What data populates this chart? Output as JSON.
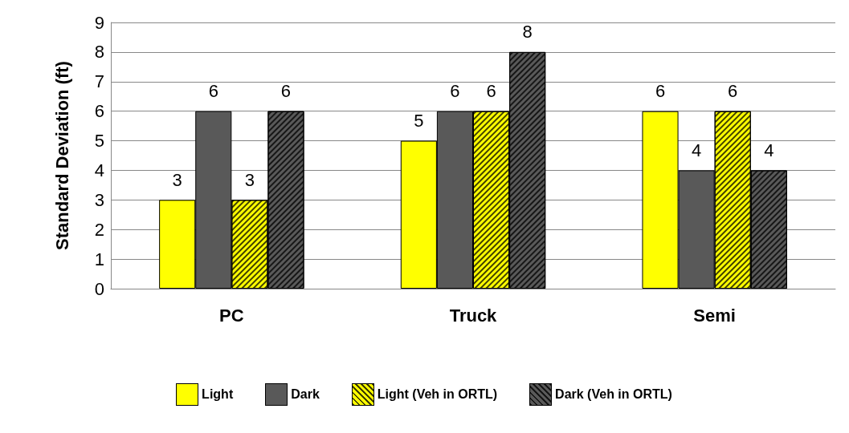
{
  "chart_data": {
    "type": "bar",
    "ylabel": "Standard Deviation (ft)",
    "categories": [
      "PC",
      "Truck",
      "Semi"
    ],
    "series": [
      {
        "name": "Light",
        "color": "#ffff00",
        "values": [
          3,
          5,
          6
        ]
      },
      {
        "name": "Dark",
        "color": "#595959",
        "values": [
          6,
          6,
          4
        ]
      },
      {
        "name": "Light (Veh in ORTL)",
        "color": "#ffff00",
        "values": [
          3,
          6,
          6
        ]
      },
      {
        "name": "Dark (Veh in ORTL)",
        "color": "#595959",
        "values": [
          6,
          8,
          4
        ]
      }
    ],
    "ylim": [
      0,
      9
    ],
    "yticks": [
      0,
      1,
      2,
      3,
      4,
      5,
      6,
      7,
      8,
      9
    ],
    "grid": "y",
    "legend": "bottom",
    "data_labels": true
  }
}
